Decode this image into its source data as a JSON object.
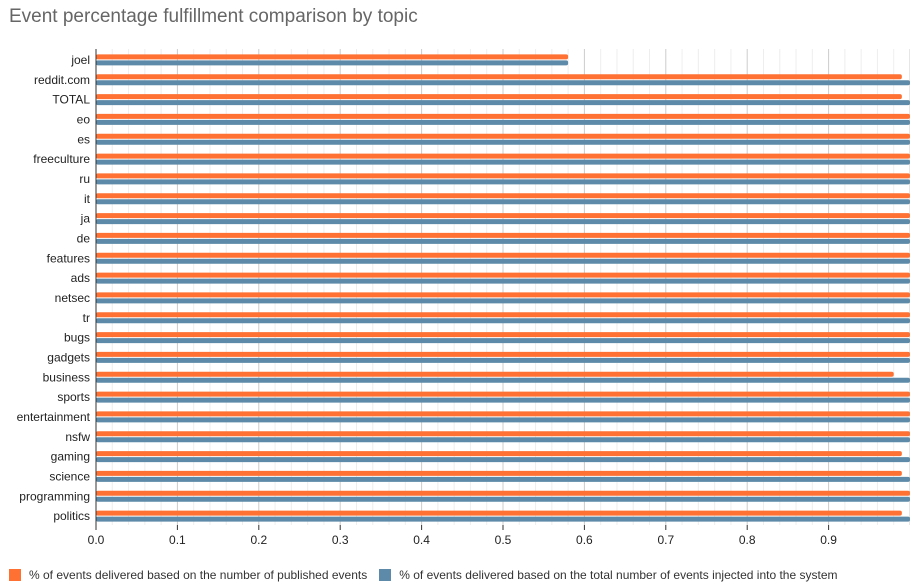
{
  "chart_data": {
    "type": "bar",
    "orientation": "horizontal",
    "title": "Event percentage fulfillment comparison by topic",
    "xlabel": "",
    "ylabel": "",
    "xlim": [
      0,
      1.0
    ],
    "xticks": [
      "0.0",
      "0.1",
      "0.2",
      "0.3",
      "0.4",
      "0.5",
      "0.6",
      "0.7",
      "0.8",
      "0.9"
    ],
    "grid": true,
    "legend_position": "bottom-left",
    "categories": [
      "joel",
      "reddit.com",
      "TOTAL",
      "eo",
      "es",
      "freeculture",
      "ru",
      "it",
      "ja",
      "de",
      "features",
      "ads",
      "netsec",
      "tr",
      "bugs",
      "gadgets",
      "business",
      "sports",
      "entertainment",
      "nsfw",
      "gaming",
      "science",
      "programming",
      "politics"
    ],
    "series": [
      {
        "name": "% of events delivered based on the number of published events",
        "color": "#ff7033",
        "values": [
          0.58,
          0.99,
          0.99,
          1.0,
          1.0,
          1.0,
          1.0,
          1.0,
          1.0,
          1.0,
          1.0,
          1.0,
          1.0,
          1.0,
          1.0,
          1.0,
          0.98,
          1.0,
          1.0,
          1.0,
          0.99,
          0.99,
          1.0,
          0.99
        ]
      },
      {
        "name": "% of events delivered based on the total number of events injected into the system",
        "color": "#5d8aa8",
        "values": [
          0.58,
          1.0,
          1.0,
          1.0,
          1.0,
          1.0,
          1.0,
          1.0,
          1.0,
          1.0,
          1.0,
          1.0,
          1.0,
          1.0,
          1.0,
          1.0,
          1.0,
          1.0,
          1.0,
          1.0,
          1.0,
          1.0,
          1.0,
          1.0
        ]
      }
    ]
  }
}
